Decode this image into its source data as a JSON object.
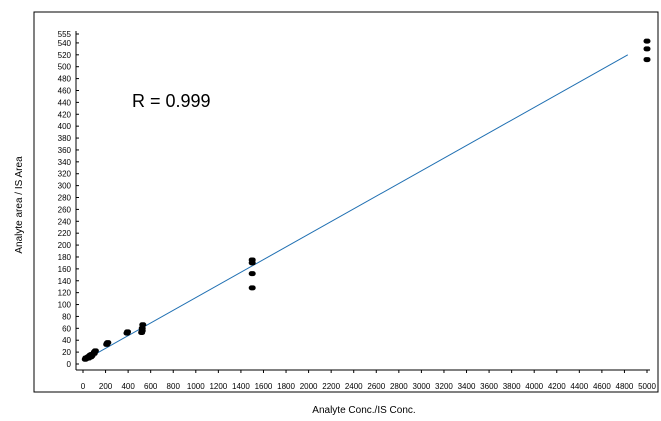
{
  "chart_data": {
    "type": "scatter",
    "title": "",
    "xlabel": "Analyte Conc./IS Conc.",
    "ylabel": "Analyte area / IS Area",
    "annotation": "R = 0.999",
    "xlim": [
      0,
      5000
    ],
    "ylim": [
      0,
      555
    ],
    "x_ticks": [
      0,
      200,
      400,
      600,
      800,
      1000,
      1200,
      1400,
      1600,
      1800,
      2000,
      2200,
      2400,
      2600,
      2800,
      3000,
      3200,
      3400,
      3600,
      3800,
      4000,
      4200,
      4400,
      4600,
      4800,
      5000
    ],
    "y_ticks": [
      0,
      20,
      40,
      60,
      80,
      100,
      120,
      140,
      160,
      180,
      200,
      220,
      240,
      260,
      280,
      300,
      320,
      340,
      360,
      380,
      400,
      420,
      440,
      460,
      480,
      500,
      520,
      540,
      555
    ],
    "grid": false,
    "legend": "none",
    "series": [
      {
        "values": [
          {
            "x": 20,
            "y": 8
          },
          {
            "x": 25,
            "y": 10
          },
          {
            "x": 30,
            "y": 9
          },
          {
            "x": 40,
            "y": 11
          },
          {
            "x": 45,
            "y": 12
          },
          {
            "x": 50,
            "y": 10
          },
          {
            "x": 55,
            "y": 13
          },
          {
            "x": 60,
            "y": 14
          },
          {
            "x": 65,
            "y": 15
          },
          {
            "x": 70,
            "y": 12
          },
          {
            "x": 75,
            "y": 16
          },
          {
            "x": 80,
            "y": 14
          },
          {
            "x": 100,
            "y": 18
          },
          {
            "x": 100,
            "y": 20
          },
          {
            "x": 110,
            "y": 22
          },
          {
            "x": 210,
            "y": 33
          },
          {
            "x": 215,
            "y": 35
          },
          {
            "x": 220,
            "y": 36
          },
          {
            "x": 390,
            "y": 52
          },
          {
            "x": 395,
            "y": 54
          },
          {
            "x": 520,
            "y": 53
          },
          {
            "x": 525,
            "y": 56
          },
          {
            "x": 525,
            "y": 60
          },
          {
            "x": 530,
            "y": 66
          },
          {
            "x": 1500,
            "y": 128
          },
          {
            "x": 1500,
            "y": 152
          },
          {
            "x": 1500,
            "y": 170
          },
          {
            "x": 1500,
            "y": 175
          },
          {
            "x": 5000,
            "y": 512
          },
          {
            "x": 5000,
            "y": 530
          },
          {
            "x": 5000,
            "y": 543
          }
        ],
        "color": "#000000"
      }
    ],
    "fit_line": {
      "x": [
        0,
        4830
      ],
      "y": [
        5,
        520
      ],
      "color": "#1f6fb2"
    },
    "border_color": "#000000"
  }
}
